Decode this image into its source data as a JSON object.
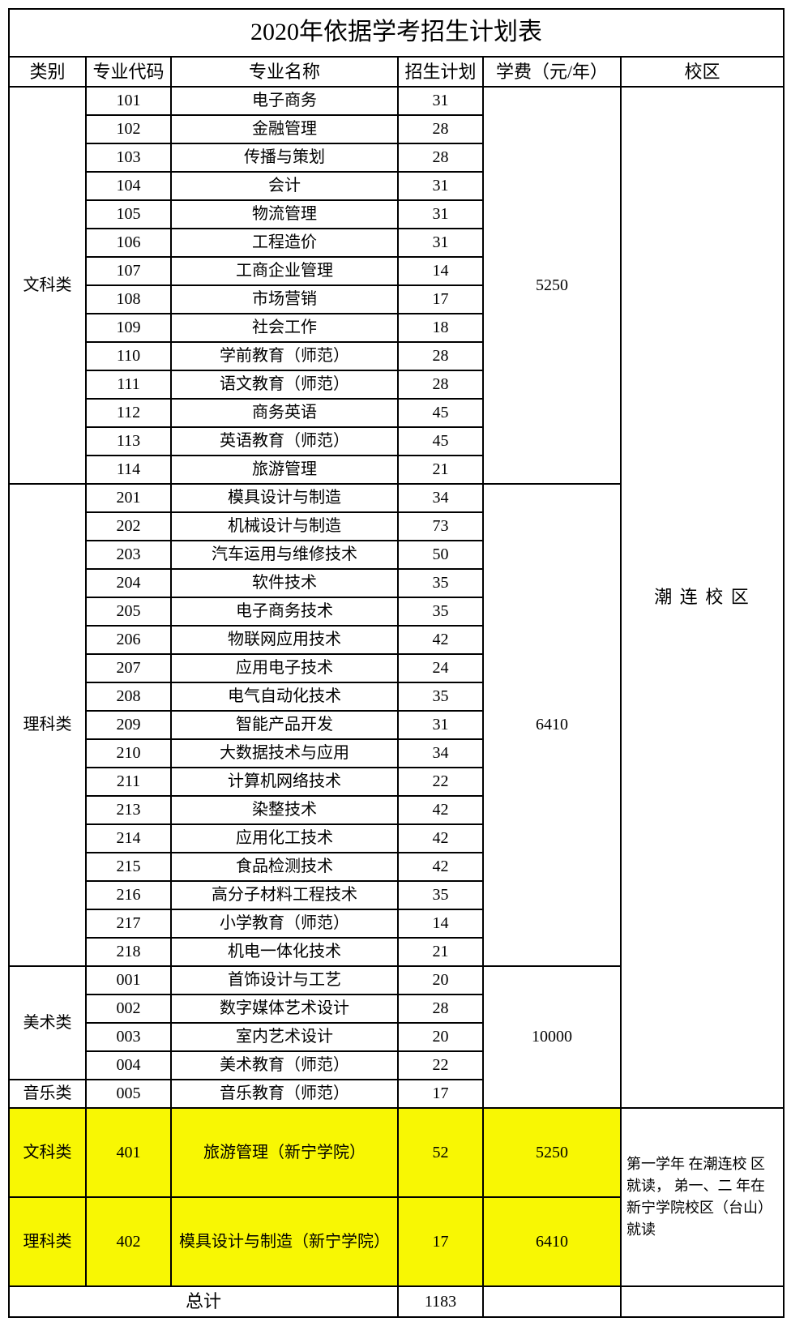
{
  "title": "2020年依据学考招生计划表",
  "headers": {
    "category": "类别",
    "code": "专业代码",
    "major": "专业名称",
    "plan": "招生计划",
    "tuition": "学费（元/年）",
    "campus": "校区"
  },
  "campus_main": "潮 连 校 区",
  "groups": [
    {
      "category": "文科类",
      "tuition": "5250",
      "rows": [
        {
          "code": "101",
          "major": "电子商务",
          "plan": "31"
        },
        {
          "code": "102",
          "major": "金融管理",
          "plan": "28"
        },
        {
          "code": "103",
          "major": "传播与策划",
          "plan": "28"
        },
        {
          "code": "104",
          "major": "会计",
          "plan": "31"
        },
        {
          "code": "105",
          "major": "物流管理",
          "plan": "31"
        },
        {
          "code": "106",
          "major": "工程造价",
          "plan": "31"
        },
        {
          "code": "107",
          "major": "工商企业管理",
          "plan": "14"
        },
        {
          "code": "108",
          "major": "市场营销",
          "plan": "17"
        },
        {
          "code": "109",
          "major": "社会工作",
          "plan": "18"
        },
        {
          "code": "110",
          "major": "学前教育（师范）",
          "plan": "28"
        },
        {
          "code": "111",
          "major": "语文教育（师范）",
          "plan": "28"
        },
        {
          "code": "112",
          "major": "商务英语",
          "plan": "45"
        },
        {
          "code": "113",
          "major": "英语教育（师范）",
          "plan": "45"
        },
        {
          "code": "114",
          "major": "旅游管理",
          "plan": "21"
        }
      ]
    },
    {
      "category": "理科类",
      "tuition": "6410",
      "rows": [
        {
          "code": "201",
          "major": "模具设计与制造",
          "plan": "34"
        },
        {
          "code": "202",
          "major": "机械设计与制造",
          "plan": "73"
        },
        {
          "code": "203",
          "major": "汽车运用与维修技术",
          "plan": "50"
        },
        {
          "code": "204",
          "major": "软件技术",
          "plan": "35"
        },
        {
          "code": "205",
          "major": "电子商务技术",
          "plan": "35"
        },
        {
          "code": "206",
          "major": "物联网应用技术",
          "plan": "42"
        },
        {
          "code": "207",
          "major": "应用电子技术",
          "plan": "24"
        },
        {
          "code": "208",
          "major": "电气自动化技术",
          "plan": "35"
        },
        {
          "code": "209",
          "major": "智能产品开发",
          "plan": "31"
        },
        {
          "code": "210",
          "major": "大数据技术与应用",
          "plan": "34"
        },
        {
          "code": "211",
          "major": "计算机网络技术",
          "plan": "22"
        },
        {
          "code": "213",
          "major": "染整技术",
          "plan": "42"
        },
        {
          "code": "214",
          "major": "应用化工技术",
          "plan": "42"
        },
        {
          "code": "215",
          "major": "食品检测技术",
          "plan": "42"
        },
        {
          "code": "216",
          "major": "高分子材料工程技术",
          "plan": "35"
        },
        {
          "code": "217",
          "major": "小学教育（师范）",
          "plan": "14"
        },
        {
          "code": "218",
          "major": "机电一体化技术",
          "plan": "21"
        }
      ]
    },
    {
      "category": "美术类",
      "tuition": "10000",
      "tuition_rowspan_extra": 1,
      "rows": [
        {
          "code": "001",
          "major": "首饰设计与工艺",
          "plan": "20"
        },
        {
          "code": "002",
          "major": "数字媒体艺术设计",
          "plan": "28"
        },
        {
          "code": "003",
          "major": "室内艺术设计",
          "plan": "20"
        },
        {
          "code": "004",
          "major": "美术教育（师范）",
          "plan": "22"
        }
      ]
    },
    {
      "category": "音乐类",
      "rows": [
        {
          "code": "005",
          "major": "音乐教育（师范）",
          "plan": "17"
        }
      ]
    }
  ],
  "highlight_rows": [
    {
      "category": "文科类",
      "code": "401",
      "major": "旅游管理（新宁学院）",
      "plan": "52",
      "tuition": "5250"
    },
    {
      "category": "理科类",
      "code": "402",
      "major": "模具设计与制造（新宁学院）",
      "plan": "17",
      "tuition": "6410"
    }
  ],
  "campus_note": "第一学年 在潮连校 区就读， 弟一、二 年在新宁学院校区（台山） 就读",
  "total_label": "总计",
  "total_value": "1183",
  "colors": {
    "highlight": "#f8f703",
    "border": "#000000",
    "background": "#ffffff"
  }
}
